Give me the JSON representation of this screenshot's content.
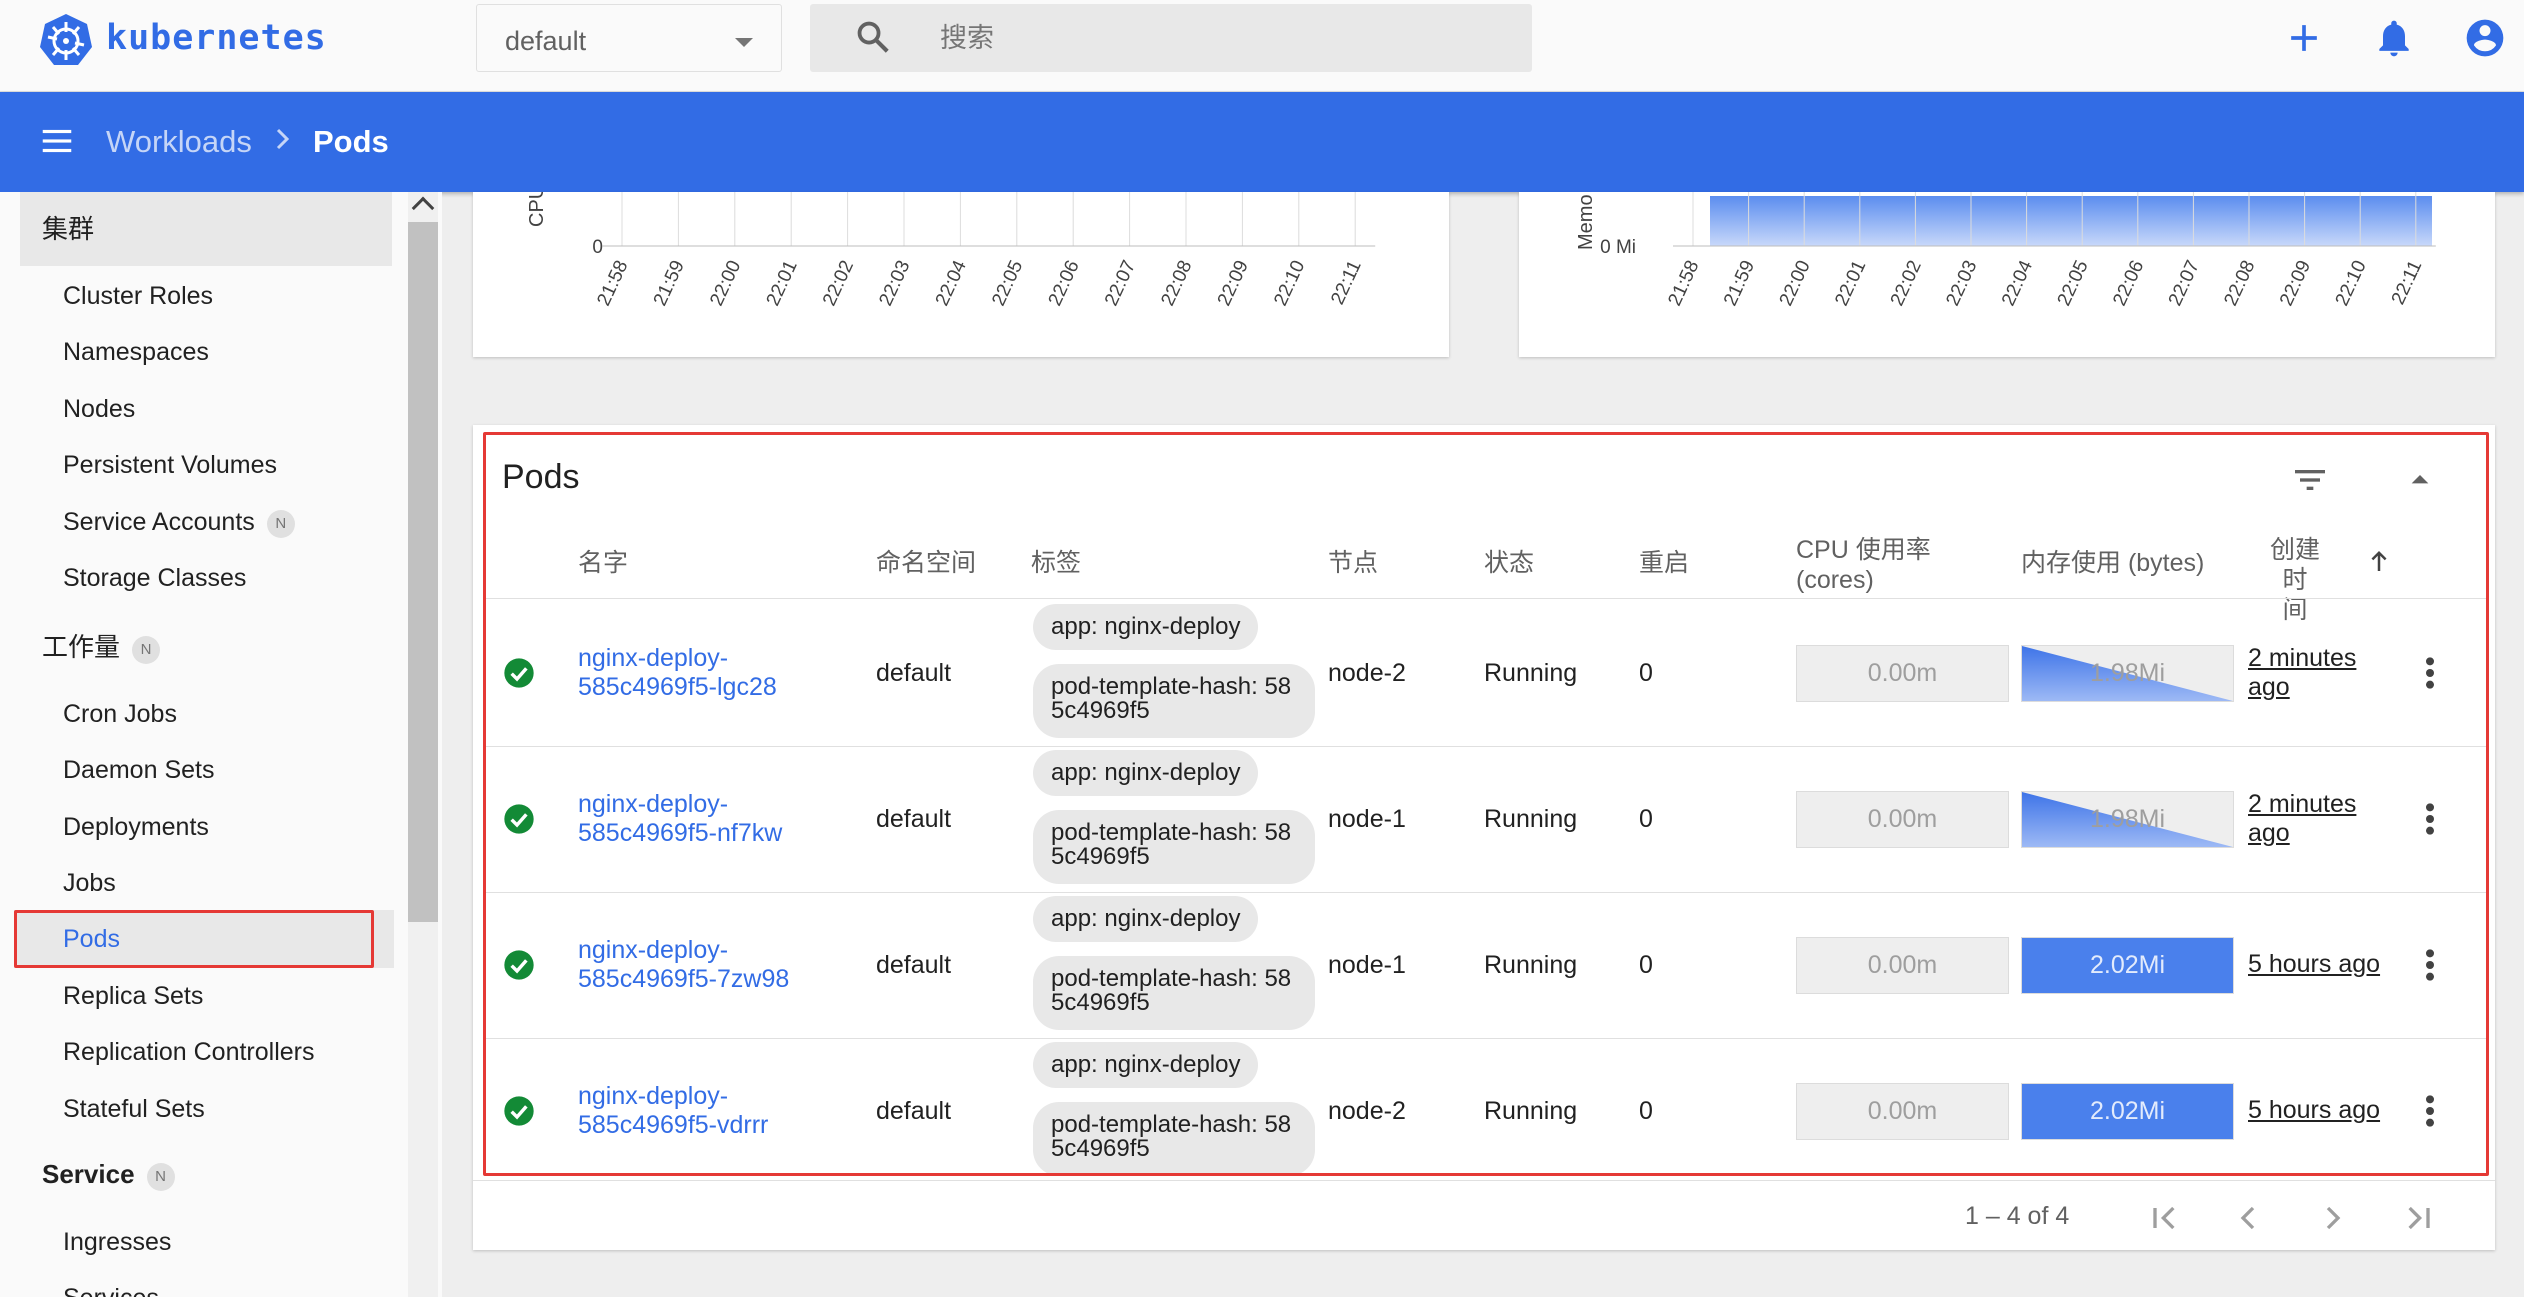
{
  "topbar": {
    "brand": "kubernetes",
    "namespace": "default",
    "search_placeholder": "搜索"
  },
  "breadcrumb": {
    "parent": "Workloads",
    "current": "Pods"
  },
  "sidebar": {
    "cluster_section": "集群",
    "cluster_items": [
      "Cluster Roles",
      "Namespaces",
      "Nodes",
      "Persistent Volumes",
      "Service Accounts",
      "Storage Classes"
    ],
    "workloads_section": "工作量",
    "workload_items": [
      "Cron Jobs",
      "Daemon Sets",
      "Deployments",
      "Jobs",
      "Pods",
      "Replica Sets",
      "Replication Controllers",
      "Stateful Sets"
    ],
    "service_section": "Service",
    "service_items": [
      "Ingresses",
      "Services"
    ],
    "new_badge": "N"
  },
  "cpu_chart": {
    "ylabel": "CPU",
    "ytick": "0",
    "xticks": [
      "21:58",
      "21:59",
      "22:00",
      "22:01",
      "22:02",
      "22:03",
      "22:04",
      "22:05",
      "22:06",
      "22:07",
      "22:08",
      "22:09",
      "22:10",
      "22:11"
    ]
  },
  "mem_chart": {
    "ylabel": "Memo",
    "ytick": "0 Mi",
    "xticks": [
      "21:58",
      "21:59",
      "22:00",
      "22:01",
      "22:02",
      "22:03",
      "22:04",
      "22:05",
      "22:06",
      "22:07",
      "22:08",
      "22:09",
      "22:10",
      "22:11"
    ]
  },
  "pods": {
    "title": "Pods",
    "columns": {
      "name": "名字",
      "namespace": "命名空间",
      "labels": "标签",
      "node": "节点",
      "status": "状态",
      "restarts": "重启",
      "cpu_line1": "CPU 使用率",
      "cpu_line2": "(cores)",
      "memory": "内存使用 (bytes)",
      "created_line1": "创建时",
      "created_line2": "间"
    },
    "rows": [
      {
        "name_line1": "nginx-deploy-",
        "name_line2": "585c4969f5-lgc28",
        "namespace": "default",
        "label1": "app: nginx-deploy",
        "label2": "pod-template-hash: 585c4969f5",
        "node": "node-2",
        "status": "Running",
        "restarts": "0",
        "cpu": "0.00m",
        "memory": "1.98Mi",
        "age_line1": "2 minutes",
        "age_line2": "ago"
      },
      {
        "name_line1": "nginx-deploy-",
        "name_line2": "585c4969f5-nf7kw",
        "namespace": "default",
        "label1": "app: nginx-deploy",
        "label2": "pod-template-hash: 585c4969f5",
        "node": "node-1",
        "status": "Running",
        "restarts": "0",
        "cpu": "0.00m",
        "memory": "1.98Mi",
        "age_line1": "2 minutes",
        "age_line2": "ago"
      },
      {
        "name_line1": "nginx-deploy-",
        "name_line2": "585c4969f5-7zw98",
        "namespace": "default",
        "label1": "app: nginx-deploy",
        "label2": "pod-template-hash: 585c4969f5",
        "node": "node-1",
        "status": "Running",
        "restarts": "0",
        "cpu": "0.00m",
        "memory": "2.02Mi",
        "age_line1": "5 hours ago",
        "age_line2": ""
      },
      {
        "name_line1": "nginx-deploy-",
        "name_line2": "585c4969f5-vdrrr",
        "namespace": "default",
        "label1": "app: nginx-deploy",
        "label2": "pod-template-hash: 585c4969f5",
        "node": "node-2",
        "status": "Running",
        "restarts": "0",
        "cpu": "0.00m",
        "memory": "2.02Mi",
        "age_line1": "5 hours ago",
        "age_line2": ""
      }
    ],
    "pagination": "1 – 4 of 4"
  },
  "colors": {
    "brand": "#326ce5",
    "success": "#138a36",
    "highlight": "#e53935"
  }
}
